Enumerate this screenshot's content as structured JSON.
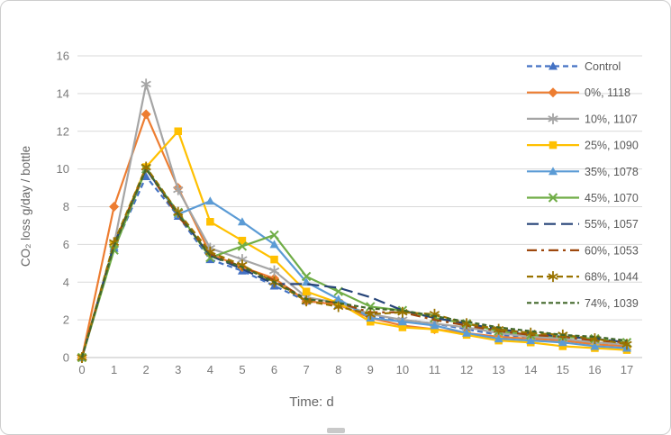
{
  "window": {
    "background": "#ffffff",
    "frame_border_color": "#cdcdcd",
    "gridline_color": "#d9d9d9",
    "axis_line_color": "#bfbfbf",
    "tick_label_color": "#7a7a7a"
  },
  "chart_data": {
    "type": "line",
    "title": "",
    "xlabel": "Time: d",
    "ylabel": "CO₂ loss g/day / bottle",
    "grid": true,
    "legend_position": "right",
    "ylim": [
      0,
      16
    ],
    "yticks": [
      0,
      2,
      4,
      6,
      8,
      10,
      12,
      14,
      16
    ],
    "x": [
      0,
      1,
      2,
      3,
      4,
      5,
      6,
      7,
      8,
      9,
      10,
      11,
      12,
      13,
      14,
      15,
      16,
      17
    ],
    "series": [
      {
        "name": "Control",
        "color": "#4472C4",
        "dash": "6 4",
        "marker": "triangle",
        "values": [
          0,
          5.8,
          9.6,
          7.5,
          5.2,
          4.6,
          3.8,
          3.0,
          2.8,
          2.2,
          2.0,
          1.8,
          1.5,
          1.2,
          1.1,
          0.9,
          0.8,
          0.6
        ]
      },
      {
        "name": "0%, 1118",
        "color": "#ED7D31",
        "dash": null,
        "marker": "diamond",
        "values": [
          0,
          8.0,
          12.9,
          9.0,
          5.5,
          4.8,
          4.2,
          3.0,
          2.8,
          2.1,
          1.7,
          1.5,
          1.3,
          1.1,
          1.0,
          0.9,
          0.7,
          0.6
        ]
      },
      {
        "name": "10%, 1107",
        "color": "#A5A5A5",
        "dash": null,
        "marker": "asterisk",
        "values": [
          0,
          6.0,
          14.5,
          8.9,
          5.8,
          5.2,
          4.6,
          3.2,
          2.9,
          2.3,
          2.0,
          1.8,
          1.6,
          1.3,
          1.1,
          1.0,
          0.8,
          0.7
        ]
      },
      {
        "name": "25%, 1090",
        "color": "#FFC000",
        "dash": null,
        "marker": "square",
        "values": [
          0,
          6.0,
          10.1,
          12.0,
          7.2,
          6.2,
          5.2,
          3.5,
          2.9,
          1.9,
          1.6,
          1.5,
          1.2,
          0.9,
          0.8,
          0.6,
          0.5,
          0.4
        ]
      },
      {
        "name": "35%, 1078",
        "color": "#5B9BD5",
        "dash": null,
        "marker": "triangle",
        "values": [
          0,
          5.9,
          10.0,
          7.6,
          8.3,
          7.2,
          6.0,
          4.0,
          3.1,
          2.1,
          1.9,
          1.7,
          1.3,
          1.0,
          0.9,
          0.8,
          0.6,
          0.5
        ]
      },
      {
        "name": "45%, 1070",
        "color": "#70AD47",
        "dash": null,
        "marker": "x",
        "values": [
          0,
          5.7,
          10.0,
          7.7,
          5.3,
          5.9,
          6.5,
          4.3,
          3.5,
          2.7,
          2.5,
          2.1,
          1.8,
          1.4,
          1.2,
          1.1,
          1.0,
          0.8
        ]
      },
      {
        "name": "55%, 1057",
        "color": "#264478",
        "dash": "13 6",
        "marker": "none",
        "values": [
          0,
          6.0,
          10.0,
          7.6,
          5.4,
          4.7,
          3.9,
          3.9,
          3.7,
          3.2,
          2.5,
          2.1,
          1.8,
          1.5,
          1.3,
          1.1,
          1.0,
          0.8
        ]
      },
      {
        "name": "60%, 1053",
        "color": "#9E480E",
        "dash": "11 5 3 5",
        "marker": "none",
        "values": [
          0,
          6.0,
          10.0,
          7.5,
          5.5,
          4.8,
          4.1,
          3.1,
          2.9,
          2.4,
          2.4,
          2.0,
          1.7,
          1.4,
          1.2,
          1.1,
          0.9,
          0.8
        ]
      },
      {
        "name": "68%, 1044",
        "color": "#997300",
        "dash": "7 4",
        "marker": "asterisk",
        "values": [
          0,
          6.1,
          10.1,
          7.7,
          5.6,
          4.9,
          4.0,
          3.0,
          2.7,
          2.3,
          2.4,
          2.3,
          1.8,
          1.5,
          1.3,
          1.2,
          1.0,
          0.7
        ]
      },
      {
        "name": "74%, 1039",
        "color": "#43682B",
        "dash": "5 3",
        "marker": "none",
        "values": [
          0,
          5.9,
          10.0,
          7.6,
          5.4,
          4.8,
          4.0,
          3.1,
          2.9,
          2.6,
          2.5,
          2.2,
          1.9,
          1.6,
          1.4,
          1.2,
          1.1,
          0.9
        ]
      }
    ]
  }
}
